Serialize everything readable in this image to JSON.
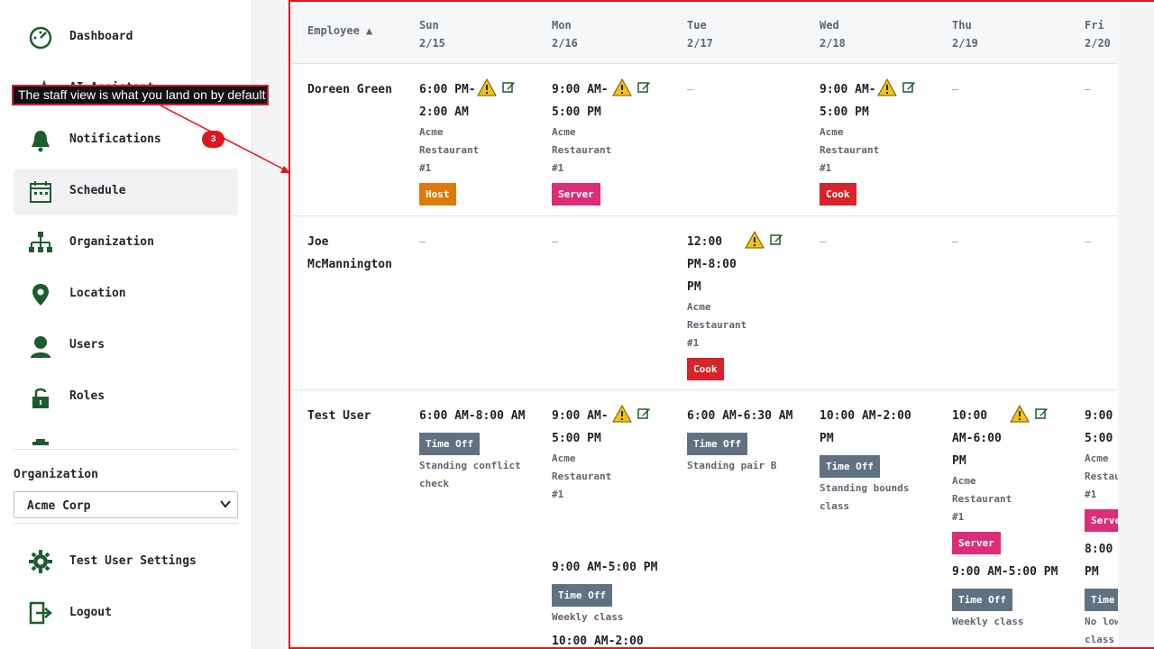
{
  "sidebar": {
    "nav": [
      {
        "label": "Dashboard",
        "icon": "dashboard-icon"
      },
      {
        "label": "AI Assistant",
        "icon": "sparkle-icon"
      },
      {
        "label": "Notifications",
        "icon": "bell-icon"
      },
      {
        "label": "Schedule",
        "icon": "calendar-icon",
        "active": true
      },
      {
        "label": "Organization",
        "icon": "org-chart-icon"
      },
      {
        "label": "Location",
        "icon": "map-pin-icon"
      },
      {
        "label": "Users",
        "icon": "user-icon"
      },
      {
        "label": "Roles",
        "icon": "lock-icon"
      }
    ],
    "org_label": "Organization",
    "org_value": "Acme Corp",
    "settings_label": "Test User Settings",
    "logout_label": "Logout"
  },
  "annotation": {
    "tooltip": "The staff view is what you land on by default",
    "step": "3"
  },
  "schedule": {
    "employee_header": "Employee ▲",
    "days": [
      {
        "dow": "Sun",
        "date": "2/15"
      },
      {
        "dow": "Mon",
        "date": "2/16"
      },
      {
        "dow": "Tue",
        "date": "2/17"
      },
      {
        "dow": "Wed",
        "date": "2/18"
      },
      {
        "dow": "Thu",
        "date": "2/19"
      },
      {
        "dow": "Fri",
        "date": "2/20"
      }
    ],
    "empty_marker": "–",
    "rows": [
      {
        "name": "Doreen Green",
        "cells": [
          {
            "time_a": "6:00 PM-",
            "time_b": "2:00 AM",
            "loc_a": "Acme",
            "loc_b": "Restaurant",
            "loc_c": "#1",
            "role": "Host"
          },
          {
            "time_a": "9:00 AM-",
            "time_b": "5:00 PM",
            "loc_a": "Acme",
            "loc_b": "Restaurant",
            "loc_c": "#1",
            "role": "Server"
          },
          {
            "empty": true
          },
          {
            "time_a": "9:00 AM-",
            "time_b": "5:00 PM",
            "loc_a": "Acme",
            "loc_b": "Restaurant",
            "loc_c": "#1",
            "role": "Cook"
          },
          {
            "empty": true
          },
          {
            "empty": true
          }
        ]
      },
      {
        "name_a": "Joe",
        "name_b": "McMannington",
        "cells": [
          {
            "empty": true
          },
          {
            "empty": true
          },
          {
            "time_a": "12:00",
            "time_b": "PM-8:00",
            "time_c": "PM",
            "loc_a": "Acme",
            "loc_b": "Restaurant",
            "loc_c": "#1",
            "role": "Cook"
          },
          {
            "empty": true
          },
          {
            "empty": true
          },
          {
            "empty": true
          }
        ]
      },
      {
        "name": "Test User",
        "sun": {
          "time": "6:00 AM-8:00 AM",
          "tag": "Time Off",
          "note_a": "Standing conflict",
          "note_b": "check"
        },
        "mon": {
          "time_a": "9:00 AM-",
          "time_b": "5:00 PM",
          "loc_a": "Acme",
          "loc_b": "Restaurant",
          "loc_c": "#1",
          "time2": "9:00 AM-5:00 PM",
          "tag2": "Time Off",
          "note2": "Weekly class",
          "time3": "10:00 AM-2:00"
        },
        "tue": {
          "time": "6:00 AM-6:30 AM",
          "tag": "Time Off",
          "note": "Standing pair B"
        },
        "wed": {
          "time_a": "10:00 AM-2:00",
          "time_b": "PM",
          "tag": "Time Off",
          "note_a": "Standing bounds",
          "note_b": "class"
        },
        "thu": {
          "time_a": "10:00",
          "time_b": "AM-6:00",
          "time_c": "PM",
          "loc_a": "Acme",
          "loc_b": "Restaurant",
          "loc_c": "#1",
          "role": "Server",
          "time2": "9:00 AM-5:00 PM",
          "tag2": "Time Off",
          "note2": "Weekly class"
        },
        "fri": {
          "time_a": "9:00 A",
          "time_b": "5:00 P",
          "loc_a": "Acme",
          "loc_b": "Restau",
          "loc_c": "#1",
          "role": "Serve",
          "time2_a": "8:00 A",
          "time2_b": "PM",
          "tag2": "Time",
          "note2_a": "No low",
          "note2_b": "class"
        }
      }
    ]
  },
  "colors": {
    "host": "#de7a0c",
    "server": "#dc2d78",
    "cook": "#d8232a",
    "time_off": "#627182",
    "annotation": "#e0141c",
    "warning": "#f2c40f",
    "icon_green": "#1d5c2f"
  }
}
